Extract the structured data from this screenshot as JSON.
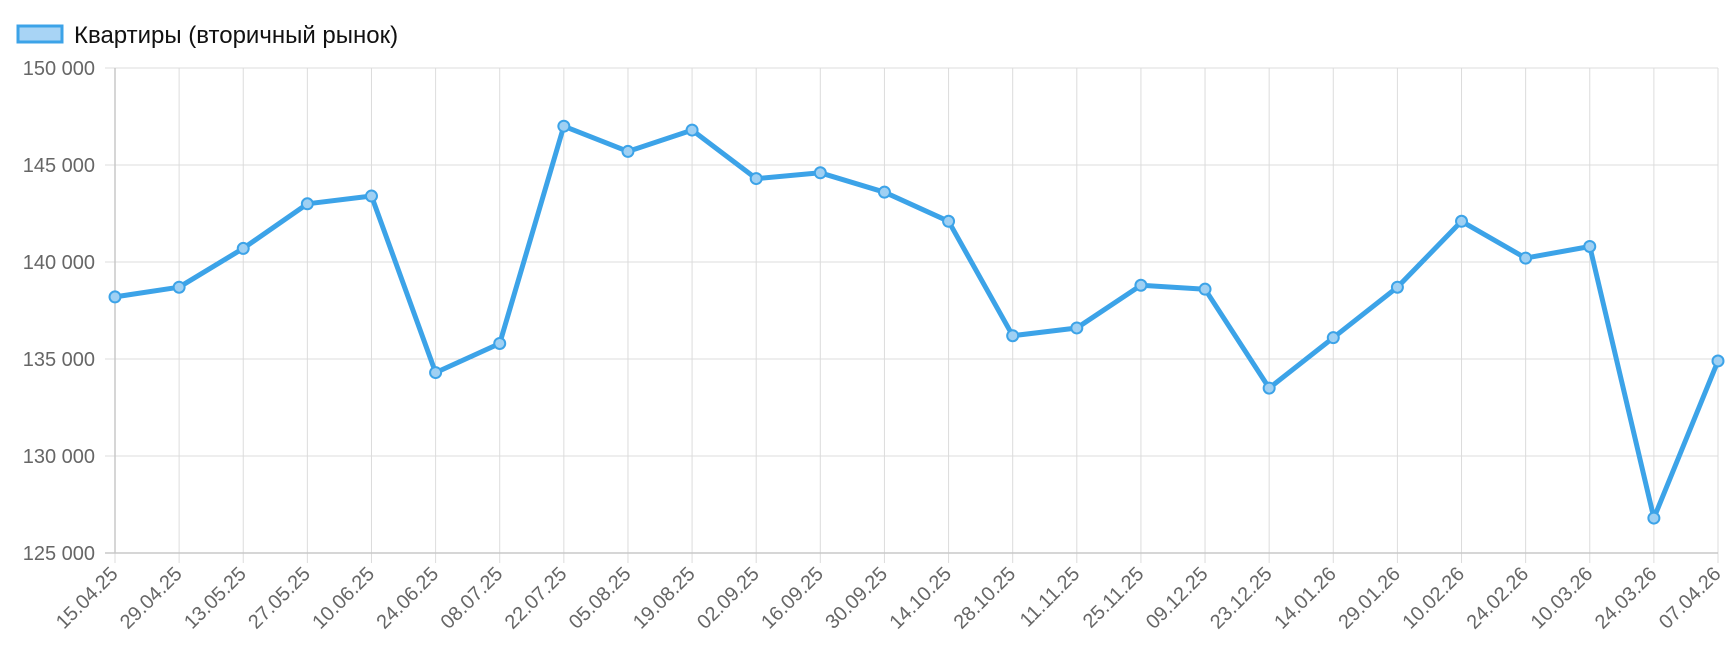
{
  "chart_data": {
    "type": "line",
    "title": "",
    "xlabel": "",
    "ylabel": "",
    "ylim": [
      125000,
      150000
    ],
    "yticks": [
      150000,
      145000,
      140000,
      135000,
      130000,
      125000
    ],
    "ytick_labels": [
      "150 000",
      "145 000",
      "140 000",
      "135 000",
      "130 000",
      "125 000"
    ],
    "categories": [
      "15.04.25",
      "29.04.25",
      "13.05.25",
      "27.05.25",
      "10.06.25",
      "24.06.25",
      "08.07.25",
      "22.07.25",
      "05.08.25",
      "19.08.25",
      "02.09.25",
      "16.09.25",
      "30.09.25",
      "14.10.25",
      "28.10.25",
      "11.11.25",
      "25.11.25",
      "09.12.25",
      "23.12.25",
      "14.01.26",
      "29.01.26",
      "10.02.26",
      "24.02.26",
      "10.03.26",
      "24.03.26",
      "07.04.26"
    ],
    "series": [
      {
        "name": "Квартиры (вторичный рынок)",
        "color": "#3ca3e8",
        "values": [
          138200,
          138700,
          140700,
          143000,
          143400,
          134300,
          135800,
          147000,
          145700,
          146800,
          144300,
          144600,
          143600,
          142100,
          136200,
          136600,
          138800,
          138600,
          133500,
          136100,
          138700,
          142100,
          140200,
          140800,
          126800,
          134900
        ]
      }
    ],
    "legend": "top-left",
    "grid": true
  }
}
